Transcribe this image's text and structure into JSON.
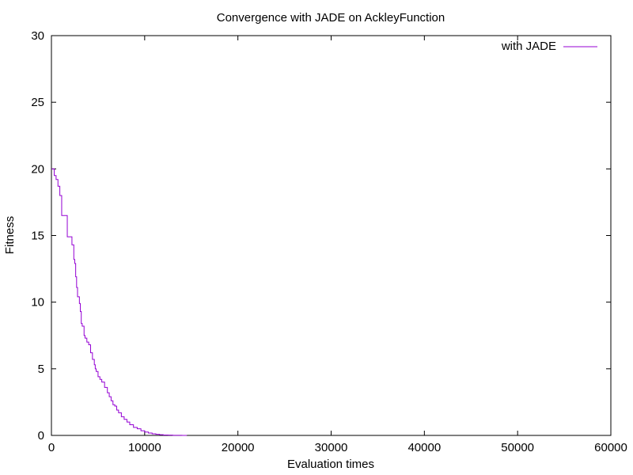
{
  "chart_data": {
    "type": "line",
    "title": "Convergence with JADE on AckleyFunction",
    "xlabel": "Evaluation times",
    "ylabel": "Fitness",
    "xlim": [
      0,
      60000
    ],
    "ylim": [
      0,
      30
    ],
    "x_ticks": [
      0,
      10000,
      20000,
      30000,
      40000,
      50000,
      60000
    ],
    "y_ticks": [
      0,
      5,
      10,
      15,
      20,
      25,
      30
    ],
    "x_tick_labels": [
      "0",
      "10000",
      "20000",
      "30000",
      "40000",
      "50000",
      "60000"
    ],
    "y_tick_labels": [
      "0",
      "5",
      "10",
      "15",
      "20",
      "25",
      "30"
    ],
    "grid": false,
    "legend_position": "top-right",
    "series": [
      {
        "name": "with JADE",
        "color": "#9400d3",
        "step": true,
        "x": [
          0,
          300,
          500,
          700,
          900,
          1100,
          1300,
          1700,
          1800,
          2200,
          2400,
          2500,
          2600,
          2700,
          2800,
          3000,
          3100,
          3200,
          3300,
          3500,
          3600,
          3800,
          4000,
          4200,
          4400,
          4600,
          4700,
          4800,
          5000,
          5200,
          5400,
          5700,
          6000,
          6200,
          6400,
          6600,
          6800,
          7000,
          7200,
          7500,
          7800,
          8100,
          8400,
          8800,
          9200,
          9600,
          10000,
          10400,
          10800,
          11200,
          11600,
          12000,
          12500,
          13000,
          13500,
          14000,
          14500
        ],
        "y": [
          20.0,
          19.5,
          19.2,
          18.7,
          18.0,
          16.5,
          16.5,
          14.9,
          14.9,
          14.3,
          13.2,
          12.9,
          11.9,
          11.1,
          10.4,
          9.9,
          9.3,
          8.4,
          8.2,
          7.5,
          7.3,
          7.0,
          6.8,
          6.2,
          5.7,
          5.3,
          5.0,
          4.8,
          4.4,
          4.2,
          4.0,
          3.6,
          3.2,
          2.9,
          2.6,
          2.3,
          2.2,
          1.9,
          1.7,
          1.4,
          1.2,
          1.0,
          0.8,
          0.6,
          0.5,
          0.35,
          0.25,
          0.18,
          0.12,
          0.08,
          0.05,
          0.03,
          0.02,
          0.01,
          0.005,
          0.002,
          0.001
        ]
      }
    ]
  }
}
